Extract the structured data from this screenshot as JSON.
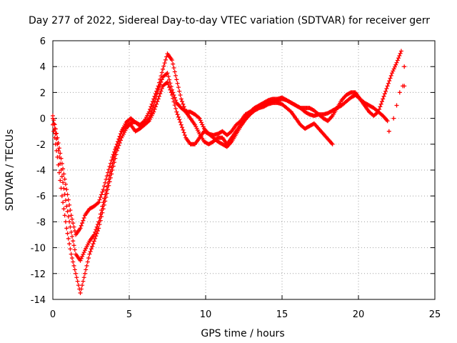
{
  "chart_data": {
    "type": "scatter",
    "title": "Day 277 of 2022, Sidereal Day-to-day VTEC variation (SDTVAR) for receiver gerr",
    "xlabel": "GPS time / hours",
    "ylabel": "SDTVAR / TECUs",
    "xlim": [
      0,
      25
    ],
    "ylim": [
      -14,
      6
    ],
    "xticks": [
      "0",
      "5",
      "10",
      "15",
      "20",
      "25"
    ],
    "yticks": [
      "-14",
      "-12",
      "-10",
      "-8",
      "-6",
      "-4",
      "-2",
      "0",
      "2",
      "4",
      "6"
    ],
    "grid": true,
    "legend": "none",
    "marker": "plus",
    "color": "#ff0000",
    "series": [
      {
        "x": [
          0.0,
          0.3,
          0.6,
          0.9,
          1.2,
          1.5,
          1.8,
          2.1,
          2.4,
          2.7,
          3.0,
          3.3,
          3.6,
          3.9,
          4.2,
          4.5,
          4.8,
          5.1,
          5.4,
          5.7,
          6.0,
          6.3,
          6.6,
          6.9,
          7.2,
          7.5,
          7.8,
          8.1,
          8.4,
          8.7,
          9.0,
          9.3,
          9.6,
          9.9,
          10.2,
          10.5,
          10.8,
          11.1,
          11.4,
          11.7,
          12.0,
          12.3,
          12.6,
          12.9,
          13.2,
          13.5,
          13.8,
          14.1,
          14.4,
          14.7,
          15.0,
          15.3,
          15.6,
          15.9,
          16.2,
          16.5,
          16.8,
          17.1,
          17.4,
          17.7,
          18.0,
          18.3,
          18.6,
          18.9,
          19.2,
          19.5,
          19.8,
          20.1,
          20.4,
          20.7,
          21.0,
          21.3,
          21.6,
          21.9,
          22.2,
          22.5,
          22.8
        ],
        "y": [
          0.0,
          -2.0,
          -4.5,
          -6.8,
          -8.8,
          -10.5,
          -11.0,
          -10.2,
          -9.5,
          -9.0,
          -8.0,
          -6.5,
          -5.0,
          -3.5,
          -2.0,
          -1.0,
          -0.5,
          -0.5,
          -1.0,
          -0.8,
          -0.5,
          0.0,
          1.0,
          2.2,
          3.2,
          3.5,
          2.2,
          1.2,
          0.8,
          0.5,
          0.5,
          0.3,
          0.0,
          -0.8,
          -1.2,
          -1.3,
          -1.2,
          -1.0,
          -1.3,
          -1.0,
          -0.5,
          -0.2,
          0.3,
          0.5,
          0.8,
          0.9,
          1.0,
          1.2,
          1.3,
          1.4,
          1.5,
          1.4,
          1.2,
          1.0,
          0.8,
          0.5,
          0.3,
          0.2,
          0.3,
          0.3,
          0.4,
          0.6,
          0.8,
          1.0,
          1.3,
          1.6,
          1.8,
          1.5,
          1.0,
          0.5,
          0.2,
          0.5,
          1.5,
          2.5,
          3.5,
          4.3,
          5.2
        ]
      },
      {
        "x": [
          0.0,
          0.3,
          0.6,
          0.9,
          1.2,
          1.5,
          1.8,
          2.1,
          2.4,
          2.7,
          3.0,
          3.3,
          3.6,
          3.9,
          4.2,
          4.5,
          4.8,
          5.1,
          5.4,
          5.7,
          6.0,
          6.3,
          6.6,
          6.9,
          7.2,
          7.5,
          7.8,
          8.1,
          8.4,
          8.7,
          9.0,
          9.3,
          9.6,
          9.9,
          10.2,
          10.5,
          10.8,
          11.1,
          11.4,
          11.7,
          12.0,
          12.3,
          12.6,
          12.9,
          13.2,
          13.5,
          13.8,
          14.1,
          14.4,
          14.7,
          15.0,
          15.3,
          15.6,
          15.9,
          16.2,
          16.5,
          16.8,
          17.1,
          17.4,
          17.7,
          18.0,
          18.3,
          18.6,
          18.9,
          19.2,
          19.5,
          19.8,
          20.1,
          20.4,
          20.7,
          21.0,
          21.3,
          21.6,
          21.9
        ],
        "y": [
          -0.5,
          -3.0,
          -6.0,
          -8.5,
          -10.5,
          -12.0,
          -13.5,
          -12.0,
          -10.5,
          -9.5,
          -8.5,
          -7.0,
          -5.5,
          -4.0,
          -2.5,
          -1.5,
          -0.8,
          -0.3,
          -0.3,
          -0.5,
          -0.2,
          0.5,
          1.5,
          2.5,
          3.8,
          5.0,
          4.5,
          3.0,
          1.5,
          0.5,
          0.0,
          -0.5,
          -1.2,
          -1.8,
          -2.0,
          -1.8,
          -1.5,
          -1.5,
          -2.0,
          -1.5,
          -1.0,
          -0.5,
          0.0,
          0.5,
          0.8,
          1.0,
          1.2,
          1.4,
          1.5,
          1.5,
          1.6,
          1.4,
          1.2,
          1.0,
          0.8,
          0.8,
          0.8,
          0.6,
          0.3,
          0.0,
          -0.2,
          0.2,
          0.8,
          1.4,
          1.8,
          2.0,
          2.0,
          1.5,
          1.2,
          1.0,
          0.8,
          0.5,
          0.2,
          -0.2
        ]
      },
      {
        "x": [
          0.0,
          0.3,
          0.6,
          0.9,
          1.2,
          1.5,
          1.8,
          2.1,
          2.4,
          2.7,
          3.0,
          3.3,
          3.6,
          3.9,
          4.2,
          4.5,
          4.8,
          5.1,
          5.4,
          5.7,
          6.0,
          6.3,
          6.6,
          6.9,
          7.2,
          7.5,
          7.8,
          8.1,
          8.4,
          8.7,
          9.0,
          9.3,
          9.6,
          9.9,
          10.2,
          10.5,
          10.8,
          11.1,
          11.4,
          11.7,
          12.0,
          12.3,
          12.6,
          12.9,
          13.2,
          13.5,
          13.8,
          14.1,
          14.4,
          14.7,
          15.0,
          15.3,
          15.6,
          15.9,
          16.2,
          16.5,
          16.8,
          17.1,
          17.4,
          17.7,
          18.0,
          18.3
        ],
        "y": [
          0.2,
          -1.5,
          -3.5,
          -5.5,
          -7.5,
          -9.0,
          -8.5,
          -7.5,
          -7.0,
          -6.8,
          -6.5,
          -5.5,
          -4.2,
          -3.0,
          -2.0,
          -1.0,
          -0.3,
          0.0,
          -0.3,
          -0.6,
          -0.5,
          -0.2,
          0.5,
          1.5,
          2.5,
          2.8,
          1.8,
          0.5,
          -0.5,
          -1.5,
          -2.0,
          -2.0,
          -1.5,
          -1.0,
          -1.2,
          -1.5,
          -1.8,
          -2.0,
          -2.2,
          -1.8,
          -1.2,
          -0.6,
          -0.1,
          0.3,
          0.6,
          0.8,
          0.9,
          1.1,
          1.2,
          1.2,
          1.1,
          0.8,
          0.5,
          0.0,
          -0.5,
          -0.8,
          -0.6,
          -0.4,
          -0.8,
          -1.2,
          -1.6,
          -2.0
        ]
      }
    ],
    "extra_points": {
      "x": [
        22.0,
        22.3,
        22.5,
        22.7,
        22.9,
        23.0,
        23.0
      ],
      "y": [
        -1.0,
        0.0,
        1.0,
        2.0,
        2.5,
        4.0,
        2.5
      ]
    }
  }
}
